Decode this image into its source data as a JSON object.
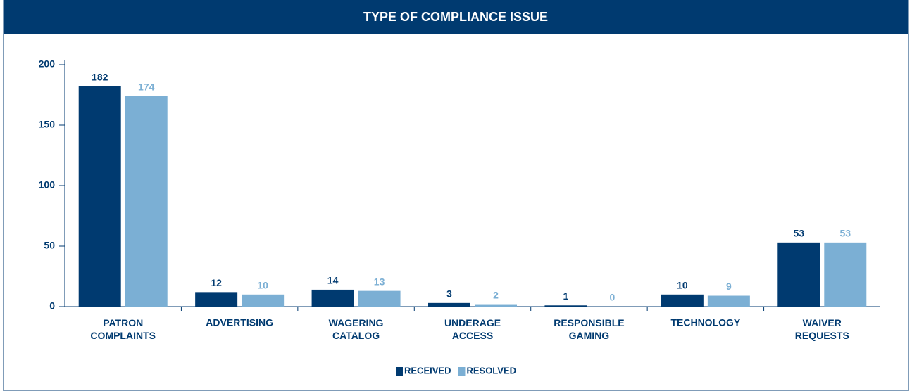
{
  "chart_data": {
    "type": "bar",
    "title": "TYPE OF COMPLIANCE ISSUE",
    "categories": [
      "PATRON COMPLAINTS",
      "ADVERTISING",
      "WAGERING CATALOG",
      "UNDERAGE ACCESS",
      "RESPONSIBLE GAMING",
      "TECHNOLOGY",
      "WAIVER REQUESTS"
    ],
    "series": [
      {
        "name": "RECEIVED",
        "color": "#003a70",
        "values": [
          182,
          12,
          14,
          3,
          1,
          10,
          53
        ]
      },
      {
        "name": "RESOLVED",
        "color": "#7bafd4",
        "values": [
          174,
          10,
          13,
          2,
          0,
          9,
          53
        ]
      }
    ],
    "ylim": [
      0,
      200
    ],
    "yticks": [
      0,
      50,
      100,
      150,
      200
    ],
    "grid": false,
    "legend": "bottom"
  }
}
